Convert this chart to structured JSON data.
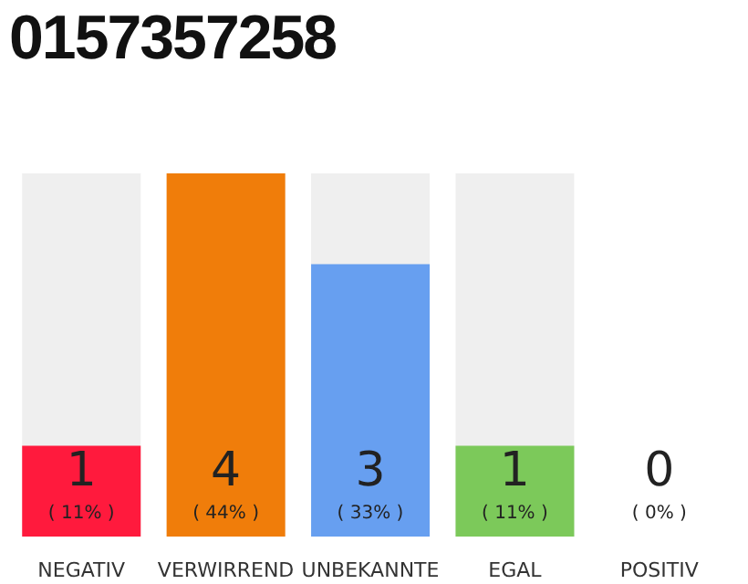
{
  "chart_data": {
    "type": "bar",
    "title": "0157357258",
    "categories": [
      "NEGATIV",
      "VERWIRREND",
      "UNBEKANNTE",
      "EGAL",
      "POSITIV"
    ],
    "values": [
      1,
      4,
      3,
      1,
      0
    ],
    "colors": [
      "#ff1a3d",
      "#f07d0a",
      "#679ff0",
      "#7cc95a",
      "#efefef"
    ],
    "data_labels": true,
    "annotations": [
      "( 11% )",
      "( 44% )",
      "( 33% )",
      "( 11% )",
      "( 0% )"
    ],
    "grid": false,
    "legend": false
  }
}
